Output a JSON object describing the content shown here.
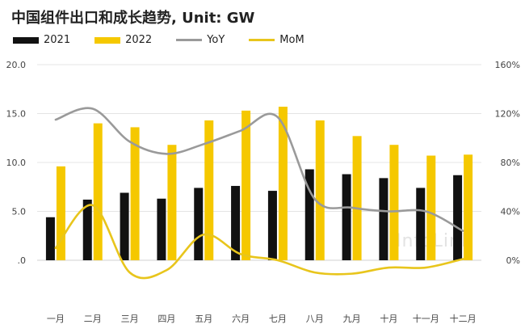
{
  "chart_data": {
    "type": "bar",
    "title": "中国组件出口和成长趋势, Unit: GW",
    "categories": [
      "一月",
      "二月",
      "三月",
      "四月",
      "五月",
      "六月",
      "七月",
      "八月",
      "九月",
      "十月",
      "十一月",
      "十二月"
    ],
    "series": [
      {
        "name": "2021",
        "type": "bar",
        "axis": "left",
        "color": "#111111",
        "values": [
          4.4,
          6.2,
          6.9,
          6.3,
          7.4,
          7.6,
          7.1,
          9.3,
          8.8,
          8.4,
          7.4,
          8.7
        ]
      },
      {
        "name": "2022",
        "type": "bar",
        "axis": "left",
        "color": "#f5c800",
        "values": [
          9.6,
          14.0,
          13.6,
          11.8,
          14.3,
          15.3,
          15.7,
          14.3,
          12.7,
          11.8,
          10.7,
          10.8
        ]
      },
      {
        "name": "YoY",
        "type": "line",
        "axis": "right",
        "color": "#9a9a9a",
        "values": [
          115,
          124,
          97,
          87,
          95,
          106,
          117,
          50,
          43,
          40,
          40,
          24
        ]
      },
      {
        "name": "MoM",
        "type": "line",
        "axis": "right",
        "color": "#e8c51c",
        "values": [
          10,
          45,
          -10,
          -8,
          21,
          5,
          0,
          -10,
          -11,
          -6,
          -6,
          1
        ]
      }
    ],
    "yleft": {
      "min": 0,
      "max": 20,
      "ticks": [
        ".0",
        "5.0",
        "10.0",
        "15.0",
        "20.0"
      ]
    },
    "yright": {
      "min": 0,
      "max": 160,
      "ticks": [
        "0%",
        "40%",
        "80%",
        "120%",
        "160%"
      ]
    },
    "grid": true,
    "legend_position": "top-left",
    "watermark": "InfoLink"
  }
}
